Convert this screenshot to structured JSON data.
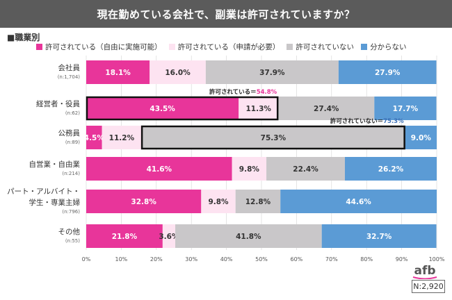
{
  "title": "現在勤めている会社で、副業は許可されていますか？",
  "subtitle": "■職業別",
  "n_label": "N:2,920",
  "logo_text": "afb",
  "colors": {
    "title_bg": "#5b5b5b",
    "series": [
      "#e8359a",
      "#fde3f1",
      "#c9c7c9",
      "#5b9bd5"
    ]
  },
  "chart_data": {
    "type": "bar",
    "orientation": "horizontal",
    "stacked": true,
    "categories": [
      {
        "label": [
          "会社員"
        ],
        "n": "(n:1,704)"
      },
      {
        "label": [
          "経営者・役員"
        ],
        "n": "(n:62)"
      },
      {
        "label": [
          "公務員"
        ],
        "n": "(n:89)"
      },
      {
        "label": [
          "自営業・自由業"
        ],
        "n": "(n:214)"
      },
      {
        "label": [
          "パート・アルバイト・",
          "学生・専業主婦"
        ],
        "n": "(n:796)"
      },
      {
        "label": [
          "その他"
        ],
        "n": "(n:55)"
      }
    ],
    "series": [
      {
        "name": "許可されている（自由に実施可能）",
        "values": [
          18.1,
          43.5,
          4.5,
          41.6,
          32.8,
          21.8
        ]
      },
      {
        "name": "許可されている（申請が必要）",
        "values": [
          16.0,
          11.3,
          11.2,
          9.8,
          9.8,
          3.6
        ]
      },
      {
        "name": "許可されていない",
        "values": [
          37.9,
          27.4,
          75.3,
          22.4,
          12.8,
          41.8
        ]
      },
      {
        "name": "分からない",
        "values": [
          27.9,
          17.7,
          9.0,
          26.2,
          44.6,
          32.7
        ]
      }
    ],
    "xlim": [
      0,
      100
    ],
    "x_ticks": [
      "0%",
      "10%",
      "20%",
      "30%",
      "40%",
      "50%",
      "60%",
      "70%",
      "80%",
      "90%",
      "100%"
    ],
    "annotations": [
      {
        "category_index": 1,
        "series": [
          0,
          1
        ],
        "label": "許可されている＝",
        "value": "54.8%",
        "color": "#e8359a"
      },
      {
        "category_index": 2,
        "series": [
          2
        ],
        "label": "許可されていない＝",
        "value": "75.3%",
        "color": "#3b6fb6"
      }
    ],
    "grid": true,
    "legend_position": "top"
  }
}
